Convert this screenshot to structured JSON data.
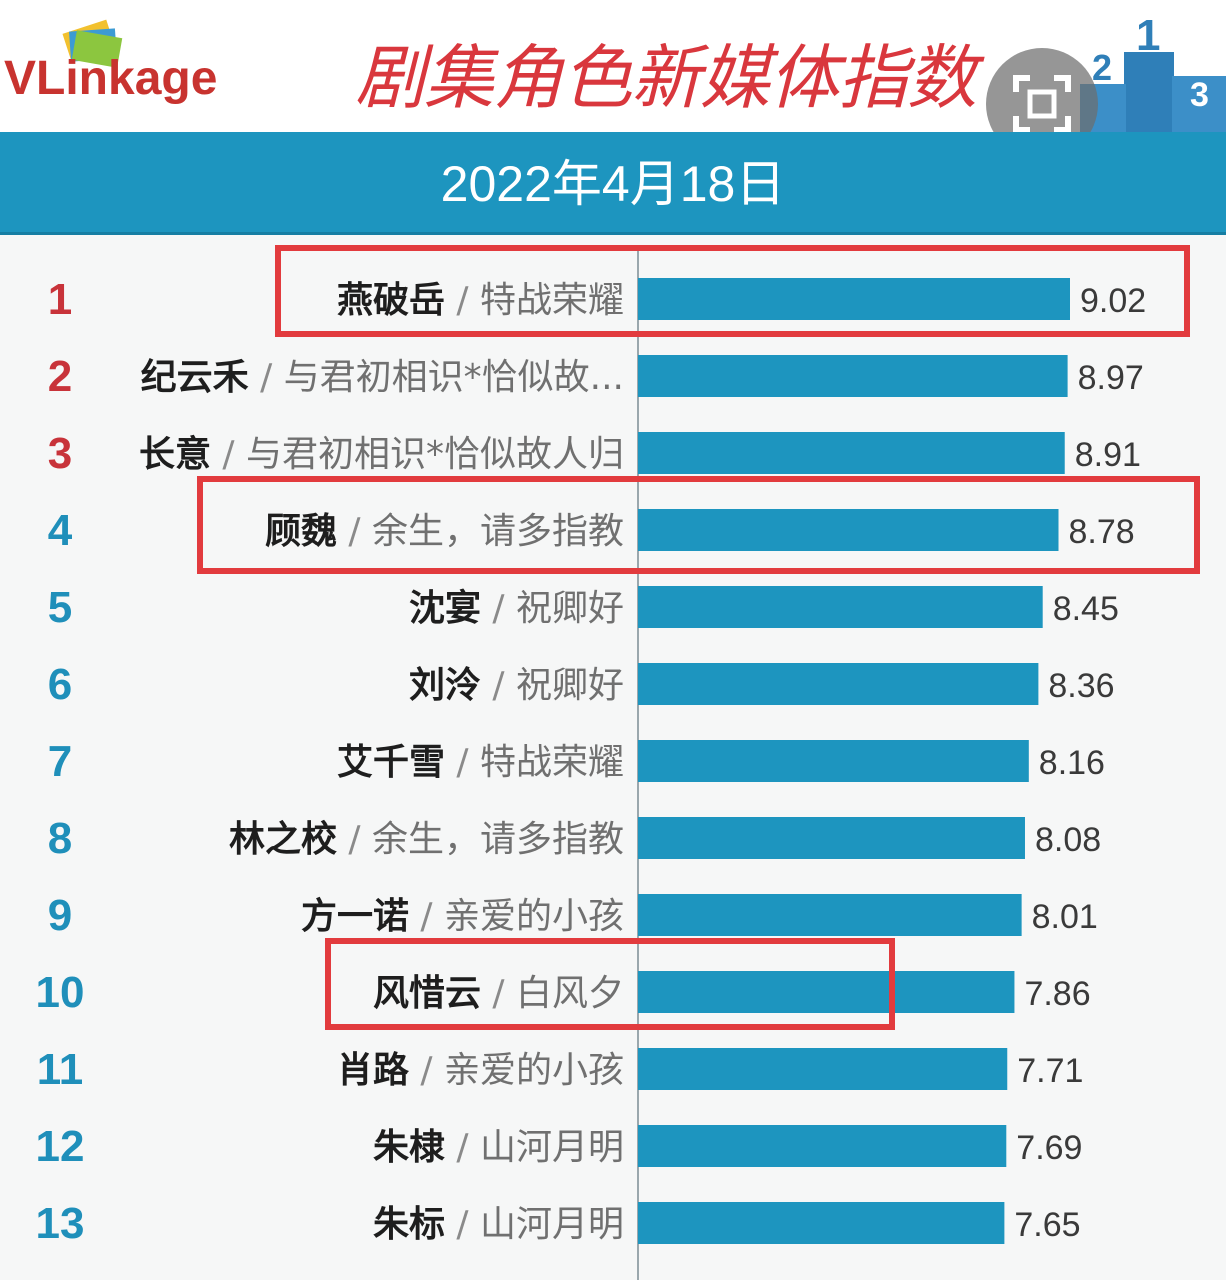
{
  "header": {
    "brand": "VLinkage",
    "title": "剧集角色新媒体指数",
    "date": "2022年4月18日"
  },
  "colors": {
    "bar": "#1d95bf",
    "rank_top3": "#c8333a",
    "rank_rest": "#1f8fba",
    "highlight": "#e23b3e",
    "title": "#d9373d"
  },
  "icons": [
    "vlinkage-logo",
    "podium-graphic",
    "scan-icon"
  ],
  "chart_data": {
    "type": "bar",
    "orientation": "horizontal",
    "title": "剧集角色新媒体指数",
    "subtitle": "2022年4月18日",
    "xlim": [
      0,
      10
    ],
    "grid": false,
    "categories": [
      {
        "rank": "1",
        "role": "燕破岳",
        "drama": "特战荣耀",
        "value": 9.02,
        "label": "9.02",
        "highlighted": true
      },
      {
        "rank": "2",
        "role": "纪云禾",
        "drama": "与君初相识*恰似故...",
        "value": 8.97,
        "label": "8.97",
        "highlighted": false
      },
      {
        "rank": "3",
        "role": "长意",
        "drama": "与君初相识*恰似故人归",
        "value": 8.91,
        "label": "8.91",
        "highlighted": false
      },
      {
        "rank": "4",
        "role": "顾魏",
        "drama": "余生，请多指教",
        "value": 8.78,
        "label": "8.78",
        "highlighted": true
      },
      {
        "rank": "5",
        "role": "沈宴",
        "drama": "祝卿好",
        "value": 8.45,
        "label": "8.45",
        "highlighted": false
      },
      {
        "rank": "6",
        "role": "刘泠",
        "drama": "祝卿好",
        "value": 8.36,
        "label": "8.36",
        "highlighted": false
      },
      {
        "rank": "7",
        "role": "艾千雪",
        "drama": "特战荣耀",
        "value": 8.16,
        "label": "8.16",
        "highlighted": false
      },
      {
        "rank": "8",
        "role": "林之校",
        "drama": "余生，请多指教",
        "value": 8.08,
        "label": "8.08",
        "highlighted": false
      },
      {
        "rank": "9",
        "role": "方一诺",
        "drama": "亲爱的小孩",
        "value": 8.01,
        "label": "8.01",
        "highlighted": false
      },
      {
        "rank": "10",
        "role": "风惜云",
        "drama": "白风夕",
        "value": 7.86,
        "label": "7.86",
        "highlighted": true
      },
      {
        "rank": "11",
        "role": "肖路",
        "drama": "亲爱的小孩",
        "value": 7.71,
        "label": "7.71",
        "highlighted": false
      },
      {
        "rank": "12",
        "role": "朱棣",
        "drama": "山河月明",
        "value": 7.69,
        "label": "7.69",
        "highlighted": false
      },
      {
        "rank": "13",
        "role": "朱标",
        "drama": "山河月明",
        "value": 7.65,
        "label": "7.65",
        "highlighted": false
      }
    ]
  }
}
